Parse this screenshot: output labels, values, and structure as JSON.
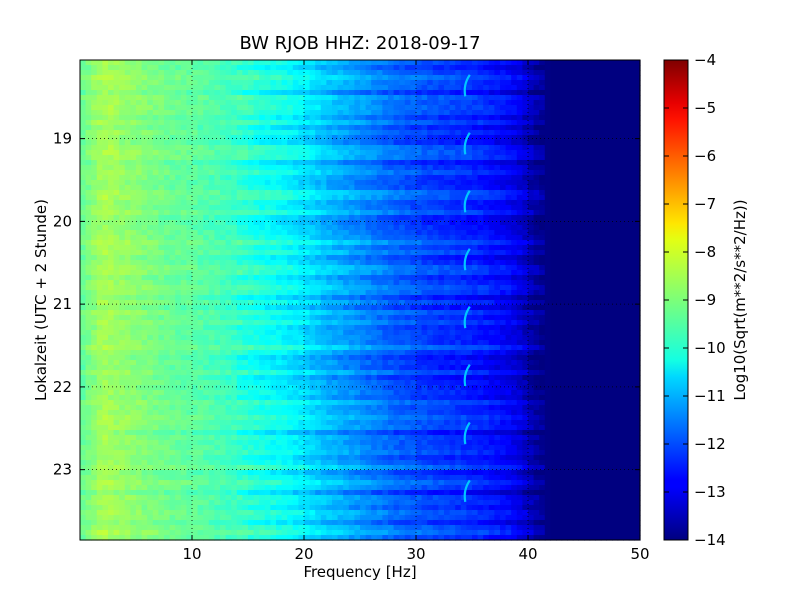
{
  "chart_data": {
    "type": "heatmap",
    "title": "BW RJOB HHZ: 2018-09-17",
    "xlabel": "Frequency [Hz]",
    "ylabel": "Lokalzeit (UTC + 2 Stunde)",
    "xlim": [
      0,
      50
    ],
    "ylim_hours": [
      18.05,
      23.85
    ],
    "x_ticks": [
      10,
      20,
      30,
      40,
      50
    ],
    "y_ticks": [
      19,
      20,
      21,
      22,
      23
    ],
    "grid": true,
    "grid_style": "dotted",
    "colormap": "jet",
    "colorbar": {
      "label": "Log10(Sqrt(m**2/s**2/Hz))",
      "range": [
        -14,
        -4
      ],
      "ticks": [
        -4,
        -5,
        -6,
        -7,
        -8,
        -9,
        -10,
        -11,
        -12,
        -13,
        -14
      ]
    },
    "spectral_level_by_frequency": {
      "frequency_hz": [
        0,
        2,
        5,
        8,
        10,
        12,
        14,
        16,
        18,
        20,
        22,
        24,
        26,
        28,
        30,
        32,
        34,
        36,
        38,
        39,
        40,
        41,
        42,
        45,
        50
      ],
      "log10_amplitude": [
        -9.3,
        -8.6,
        -8.9,
        -9.2,
        -9.3,
        -9.5,
        -9.7,
        -10.0,
        -10.2,
        -10.5,
        -10.9,
        -11.2,
        -11.5,
        -11.8,
        -12.0,
        -12.2,
        -12.3,
        -12.5,
        -12.8,
        -13.0,
        -13.4,
        -13.8,
        -14.0,
        -14.0,
        -14.0
      ]
    },
    "recurring_feature": {
      "description": "curved narrow-band line near 34–35 Hz",
      "frequency_hz": 34.5,
      "log10_amplitude": -10.8,
      "times_hours": [
        18.35,
        19.05,
        19.75,
        20.45,
        21.15,
        21.85,
        22.55,
        23.25
      ]
    }
  }
}
